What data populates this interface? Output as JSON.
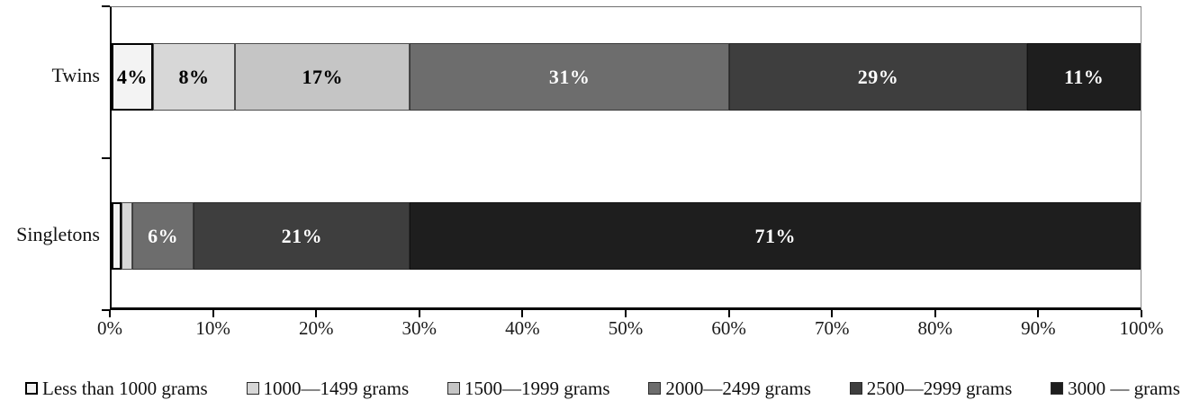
{
  "chart_data": {
    "type": "bar",
    "variant": "horizontal-stacked",
    "title": "",
    "xlabel": "",
    "ylabel": "",
    "xlim": [
      0,
      100
    ],
    "grid": false,
    "legend_position": "bottom",
    "categories": [
      "Twins",
      "Singletons"
    ],
    "x_ticks": [
      "0%",
      "10%",
      "20%",
      "30%",
      "40%",
      "50%",
      "60%",
      "70%",
      "80%",
      "90%",
      "100%"
    ],
    "series": [
      {
        "name": "Less than 1000 grams",
        "color": "#f3f3f3",
        "border_color": "#000000",
        "label_color": "#000000",
        "values": [
          4,
          1
        ],
        "labels": [
          "4%",
          ""
        ]
      },
      {
        "name": "1000—1499 grams",
        "color": "#d7d7d7",
        "border_color": "#4d4d4d",
        "label_color": "#000000",
        "values": [
          8,
          1
        ],
        "labels": [
          "8%",
          ""
        ]
      },
      {
        "name": "1500—1999 grams",
        "color": "#c5c5c5",
        "border_color": "#4d4d4d",
        "label_color": "#000000",
        "values": [
          17,
          0
        ],
        "labels": [
          "17%",
          ""
        ]
      },
      {
        "name": "2000—2499 grams",
        "color": "#6d6d6d",
        "border_color": "#3a3a3a",
        "label_color": "#ffffff",
        "values": [
          31,
          6
        ],
        "labels": [
          "31%",
          "6%"
        ]
      },
      {
        "name": "2500—2999 grams",
        "color": "#3e3e3e",
        "border_color": "#2a2a2a",
        "label_color": "#ffffff",
        "values": [
          29,
          21
        ],
        "labels": [
          "29%",
          "21%"
        ]
      },
      {
        "name": "3000 — grams",
        "color": "#1e1e1e",
        "border_color": "#111111",
        "label_color": "#ffffff",
        "values": [
          11,
          71
        ],
        "labels": [
          "11%",
          "71%"
        ]
      }
    ]
  },
  "colors": {
    "axis": "#000000",
    "plot_border": "#8a8a8a",
    "text": "#1a1a1a",
    "background": "#ffffff"
  }
}
